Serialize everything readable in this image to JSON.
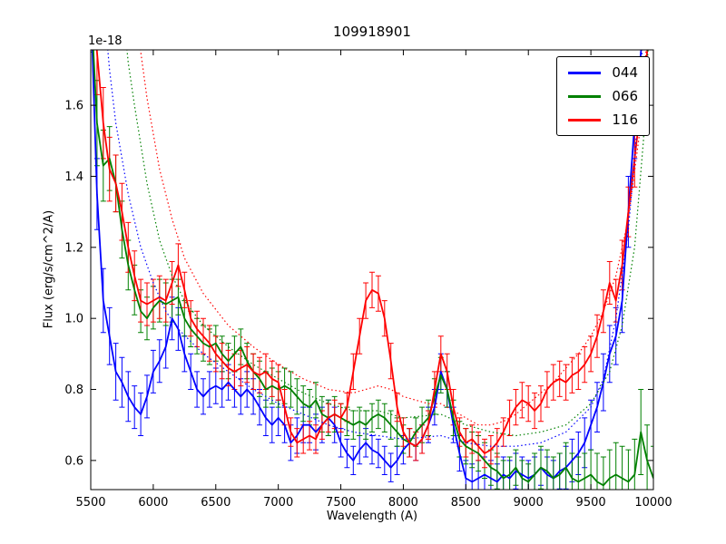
{
  "chart_data": {
    "type": "line",
    "title": "109918901",
    "offset_text": "1e-18",
    "xlabel": "Wavelength (A)",
    "ylabel": "Flux (erg/s/cm^2/A)",
    "xlim": [
      5500,
      10000
    ],
    "ylim": [
      0.518,
      1.756
    ],
    "xticks": [
      5500,
      6000,
      6500,
      7000,
      7500,
      8000,
      8500,
      9000,
      9500,
      10000
    ],
    "yticks": [
      0.6,
      0.8,
      1.0,
      1.2,
      1.4,
      1.6
    ],
    "grid": false,
    "legend_position": "upper right",
    "x_start": 5500,
    "x_step": 50,
    "series": [
      {
        "name": "044",
        "color": "#0000ff",
        "values": [
          1.9,
          1.35,
          1.05,
          0.95,
          0.85,
          0.82,
          0.78,
          0.75,
          0.73,
          0.78,
          0.85,
          0.88,
          0.92,
          1.0,
          0.97,
          0.9,
          0.85,
          0.8,
          0.78,
          0.8,
          0.81,
          0.8,
          0.82,
          0.8,
          0.78,
          0.8,
          0.78,
          0.75,
          0.72,
          0.7,
          0.72,
          0.7,
          0.65,
          0.67,
          0.7,
          0.7,
          0.68,
          0.7,
          0.72,
          0.7,
          0.65,
          0.62,
          0.6,
          0.63,
          0.65,
          0.63,
          0.62,
          0.6,
          0.58,
          0.6,
          0.63,
          0.65,
          0.64,
          0.66,
          0.7,
          0.75,
          0.85,
          0.8,
          0.7,
          0.62,
          0.55,
          0.54,
          0.55,
          0.56,
          0.55,
          0.54,
          0.56,
          0.55,
          0.57,
          0.56,
          0.55,
          0.56,
          0.58,
          0.56,
          0.55,
          0.57,
          0.58,
          0.6,
          0.62,
          0.65,
          0.7,
          0.75,
          0.82,
          0.9,
          0.95,
          1.05,
          1.3,
          1.55,
          1.75,
          1.85,
          1.9
        ],
        "errors": [
          0.12,
          0.1,
          0.09,
          0.08,
          0.08,
          0.07,
          0.07,
          0.06,
          0.06,
          0.06,
          0.06,
          0.06,
          0.06,
          0.06,
          0.06,
          0.05,
          0.05,
          0.05,
          0.05,
          0.05,
          0.05,
          0.05,
          0.05,
          0.05,
          0.05,
          0.05,
          0.05,
          0.05,
          0.05,
          0.05,
          0.05,
          0.05,
          0.05,
          0.05,
          0.05,
          0.05,
          0.05,
          0.05,
          0.05,
          0.05,
          0.04,
          0.04,
          0.04,
          0.04,
          0.04,
          0.04,
          0.04,
          0.04,
          0.04,
          0.04,
          0.04,
          0.04,
          0.04,
          0.04,
          0.05,
          0.05,
          0.05,
          0.05,
          0.05,
          0.05,
          0.05,
          0.05,
          0.05,
          0.05,
          0.05,
          0.05,
          0.05,
          0.05,
          0.05,
          0.05,
          0.05,
          0.05,
          0.05,
          0.05,
          0.05,
          0.05,
          0.06,
          0.06,
          0.06,
          0.07,
          0.07,
          0.07,
          0.08,
          0.08,
          0.08,
          0.09,
          0.1,
          0.1,
          0.11,
          0.12,
          0.12
        ]
      },
      {
        "name": "066",
        "color": "#008000",
        "values": [
          1.9,
          1.55,
          1.43,
          1.45,
          1.38,
          1.25,
          1.15,
          1.08,
          1.02,
          1.0,
          1.03,
          1.05,
          1.04,
          1.05,
          1.06,
          1.0,
          0.97,
          0.95,
          0.93,
          0.92,
          0.93,
          0.9,
          0.88,
          0.9,
          0.92,
          0.88,
          0.85,
          0.83,
          0.8,
          0.81,
          0.8,
          0.81,
          0.8,
          0.78,
          0.76,
          0.75,
          0.77,
          0.73,
          0.72,
          0.73,
          0.72,
          0.71,
          0.7,
          0.71,
          0.7,
          0.72,
          0.73,
          0.72,
          0.7,
          0.68,
          0.66,
          0.65,
          0.68,
          0.7,
          0.72,
          0.78,
          0.84,
          0.8,
          0.72,
          0.66,
          0.64,
          0.63,
          0.62,
          0.6,
          0.58,
          0.57,
          0.55,
          0.56,
          0.58,
          0.55,
          0.54,
          0.56,
          0.58,
          0.57,
          0.55,
          0.56,
          0.58,
          0.55,
          0.54,
          0.55,
          0.56,
          0.54,
          0.53,
          0.55,
          0.56,
          0.55,
          0.54,
          0.56,
          0.68,
          0.6,
          0.55
        ],
        "errors": [
          0.15,
          0.12,
          0.1,
          0.09,
          0.08,
          0.08,
          0.07,
          0.07,
          0.06,
          0.06,
          0.06,
          0.06,
          0.06,
          0.06,
          0.05,
          0.05,
          0.05,
          0.05,
          0.05,
          0.05,
          0.05,
          0.05,
          0.05,
          0.05,
          0.05,
          0.05,
          0.05,
          0.05,
          0.05,
          0.05,
          0.05,
          0.05,
          0.05,
          0.05,
          0.05,
          0.05,
          0.05,
          0.05,
          0.05,
          0.05,
          0.04,
          0.04,
          0.04,
          0.04,
          0.04,
          0.04,
          0.04,
          0.04,
          0.04,
          0.04,
          0.04,
          0.04,
          0.04,
          0.05,
          0.05,
          0.05,
          0.05,
          0.05,
          0.05,
          0.05,
          0.05,
          0.05,
          0.05,
          0.05,
          0.05,
          0.05,
          0.05,
          0.05,
          0.05,
          0.05,
          0.05,
          0.06,
          0.06,
          0.06,
          0.06,
          0.06,
          0.07,
          0.07,
          0.07,
          0.07,
          0.07,
          0.08,
          0.08,
          0.08,
          0.09,
          0.09,
          0.09,
          0.1,
          0.12,
          0.1,
          0.09
        ]
      },
      {
        "name": "116",
        "color": "#ff0000",
        "values": [
          2.0,
          1.75,
          1.55,
          1.42,
          1.38,
          1.3,
          1.2,
          1.12,
          1.05,
          1.04,
          1.05,
          1.06,
          1.05,
          1.1,
          1.15,
          1.08,
          1.0,
          0.97,
          0.95,
          0.93,
          0.9,
          0.88,
          0.86,
          0.85,
          0.86,
          0.87,
          0.85,
          0.84,
          0.85,
          0.83,
          0.82,
          0.75,
          0.68,
          0.65,
          0.66,
          0.67,
          0.66,
          0.7,
          0.72,
          0.73,
          0.72,
          0.75,
          0.85,
          0.95,
          1.05,
          1.08,
          1.07,
          1.0,
          0.88,
          0.75,
          0.68,
          0.65,
          0.64,
          0.66,
          0.7,
          0.8,
          0.9,
          0.85,
          0.75,
          0.68,
          0.65,
          0.66,
          0.64,
          0.62,
          0.63,
          0.65,
          0.68,
          0.72,
          0.75,
          0.77,
          0.76,
          0.74,
          0.76,
          0.8,
          0.82,
          0.83,
          0.82,
          0.84,
          0.85,
          0.87,
          0.9,
          0.95,
          1.02,
          1.1,
          1.05,
          1.15,
          1.3,
          1.45,
          1.6,
          1.75,
          1.9
        ],
        "errors": [
          0.14,
          0.12,
          0.1,
          0.09,
          0.08,
          0.08,
          0.07,
          0.07,
          0.06,
          0.06,
          0.06,
          0.06,
          0.06,
          0.06,
          0.06,
          0.05,
          0.05,
          0.05,
          0.05,
          0.05,
          0.05,
          0.05,
          0.05,
          0.05,
          0.05,
          0.05,
          0.05,
          0.05,
          0.05,
          0.05,
          0.05,
          0.05,
          0.04,
          0.04,
          0.04,
          0.04,
          0.04,
          0.04,
          0.04,
          0.04,
          0.04,
          0.04,
          0.05,
          0.05,
          0.05,
          0.05,
          0.05,
          0.05,
          0.05,
          0.04,
          0.04,
          0.04,
          0.04,
          0.04,
          0.04,
          0.05,
          0.05,
          0.05,
          0.05,
          0.04,
          0.04,
          0.04,
          0.04,
          0.04,
          0.04,
          0.04,
          0.04,
          0.05,
          0.05,
          0.05,
          0.05,
          0.05,
          0.05,
          0.05,
          0.05,
          0.05,
          0.05,
          0.05,
          0.05,
          0.05,
          0.05,
          0.06,
          0.06,
          0.06,
          0.06,
          0.07,
          0.07,
          0.08,
          0.08,
          0.09,
          0.1
        ]
      }
    ],
    "model_series": [
      {
        "name": "044",
        "color": "#0000ff",
        "style": "dotted",
        "points": [
          [
            5600,
            1.9
          ],
          [
            5650,
            1.7
          ],
          [
            5700,
            1.55
          ],
          [
            5800,
            1.35
          ],
          [
            5900,
            1.2
          ],
          [
            6000,
            1.1
          ],
          [
            6100,
            1.02
          ],
          [
            6200,
            0.97
          ],
          [
            6400,
            0.9
          ],
          [
            6600,
            0.85
          ],
          [
            6800,
            0.8
          ],
          [
            7000,
            0.76
          ],
          [
            7200,
            0.73
          ],
          [
            7400,
            0.7
          ],
          [
            7600,
            0.68
          ],
          [
            7800,
            0.67
          ],
          [
            8000,
            0.66
          ],
          [
            8300,
            0.67
          ],
          [
            8500,
            0.65
          ],
          [
            8700,
            0.64
          ],
          [
            8900,
            0.64
          ],
          [
            9100,
            0.65
          ],
          [
            9300,
            0.68
          ],
          [
            9500,
            0.75
          ],
          [
            9600,
            0.83
          ],
          [
            9700,
            1.0
          ],
          [
            9800,
            1.25
          ],
          [
            9850,
            1.45
          ],
          [
            9900,
            1.7
          ],
          [
            9940,
            1.9
          ]
        ]
      },
      {
        "name": "066",
        "color": "#008000",
        "style": "dotted",
        "points": [
          [
            5750,
            1.9
          ],
          [
            5800,
            1.72
          ],
          [
            5850,
            1.6
          ],
          [
            5950,
            1.38
          ],
          [
            6050,
            1.22
          ],
          [
            6150,
            1.12
          ],
          [
            6250,
            1.05
          ],
          [
            6400,
            0.98
          ],
          [
            6600,
            0.92
          ],
          [
            6800,
            0.87
          ],
          [
            7000,
            0.83
          ],
          [
            7200,
            0.79
          ],
          [
            7400,
            0.76
          ],
          [
            7600,
            0.74
          ],
          [
            7800,
            0.74
          ],
          [
            8000,
            0.72
          ],
          [
            8300,
            0.73
          ],
          [
            8500,
            0.7
          ],
          [
            8700,
            0.68
          ],
          [
            8900,
            0.67
          ],
          [
            9100,
            0.68
          ],
          [
            9300,
            0.7
          ],
          [
            9500,
            0.76
          ],
          [
            9650,
            0.85
          ],
          [
            9750,
            0.98
          ],
          [
            9850,
            1.2
          ],
          [
            9920,
            1.5
          ],
          [
            9970,
            1.85
          ]
        ]
      },
      {
        "name": "116",
        "color": "#ff0000",
        "style": "dotted",
        "points": [
          [
            5850,
            1.9
          ],
          [
            5900,
            1.75
          ],
          [
            5950,
            1.62
          ],
          [
            6050,
            1.42
          ],
          [
            6150,
            1.28
          ],
          [
            6250,
            1.17
          ],
          [
            6400,
            1.07
          ],
          [
            6600,
            0.98
          ],
          [
            6800,
            0.92
          ],
          [
            7000,
            0.87
          ],
          [
            7200,
            0.83
          ],
          [
            7400,
            0.8
          ],
          [
            7600,
            0.79
          ],
          [
            7800,
            0.81
          ],
          [
            7900,
            0.8
          ],
          [
            8000,
            0.78
          ],
          [
            8200,
            0.76
          ],
          [
            8300,
            0.76
          ],
          [
            8500,
            0.72
          ],
          [
            8600,
            0.7
          ],
          [
            8700,
            0.7
          ],
          [
            8800,
            0.71
          ],
          [
            8900,
            0.73
          ],
          [
            9000,
            0.76
          ],
          [
            9100,
            0.79
          ],
          [
            9200,
            0.82
          ],
          [
            9300,
            0.86
          ],
          [
            9400,
            0.9
          ],
          [
            9500,
            0.95
          ],
          [
            9600,
            1.02
          ],
          [
            9700,
            1.12
          ],
          [
            9800,
            1.28
          ],
          [
            9900,
            1.55
          ],
          [
            9960,
            1.85
          ]
        ]
      }
    ]
  }
}
